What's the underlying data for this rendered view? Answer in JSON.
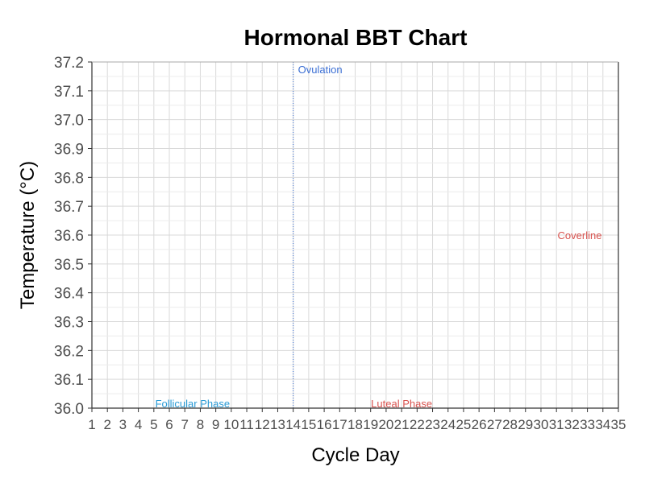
{
  "chart_data": {
    "type": "line",
    "title": "Hormonal BBT Chart",
    "xlabel": "Cycle Day",
    "ylabel": "Temperature (°C)",
    "xlim": [
      1,
      35
    ],
    "ylim": [
      36.0,
      37.2
    ],
    "x_ticks": [
      1,
      2,
      3,
      4,
      5,
      6,
      7,
      8,
      9,
      10,
      11,
      12,
      13,
      14,
      15,
      16,
      17,
      18,
      19,
      20,
      21,
      22,
      23,
      24,
      25,
      26,
      27,
      28,
      29,
      30,
      31,
      32,
      33,
      34,
      35
    ],
    "y_ticks": [
      36.0,
      36.1,
      36.2,
      36.3,
      36.4,
      36.5,
      36.6,
      36.7,
      36.8,
      36.9,
      37.0,
      37.1,
      37.2
    ],
    "y_tick_labels": [
      "36.0",
      "36.1",
      "36.2",
      "36.3",
      "36.4",
      "36.5",
      "36.6",
      "36.7",
      "36.8",
      "36.9",
      "37.0",
      "37.1",
      "37.2"
    ],
    "grid": true,
    "series": [],
    "annotations": {
      "ovulation": {
        "text": "Ovulation",
        "x": 14,
        "y": 37.18,
        "color": "#3b6fd4",
        "line_style": "dotted"
      },
      "coverline": {
        "text": "Coverline",
        "x": 32.5,
        "y": 36.6,
        "color": "#d9534f"
      },
      "follicular": {
        "text": "Follicular Phase",
        "x": 7.5,
        "y": 36.01,
        "color": "#2a9bd6"
      },
      "luteal": {
        "text": "Luteal Phase",
        "x": 21,
        "y": 36.01,
        "color": "#d9534f"
      }
    },
    "colors": {
      "grid": "#d9d9d9",
      "axis": "#333333",
      "tick_text": "#4d4d4d"
    }
  }
}
